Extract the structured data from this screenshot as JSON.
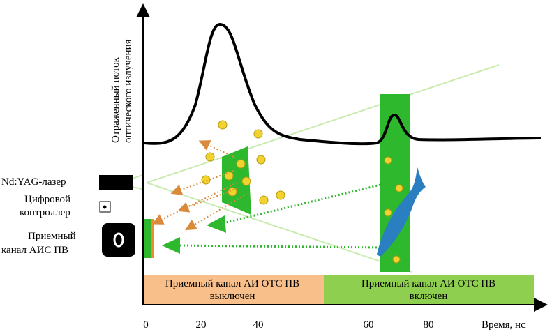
{
  "y_axis_label": [
    "Отраженный поток",
    "оптического излучения"
  ],
  "x_axis": {
    "ticks": [
      0,
      20,
      40,
      60,
      80
    ],
    "label": "Время, нс"
  },
  "devices": {
    "laser": "Nd:YAG-лазер",
    "controller": [
      "Цифровой",
      "контроллер"
    ],
    "receiver": [
      "Приемный",
      "канал АИС ПВ"
    ]
  },
  "states": {
    "off": [
      "Приемный канал АИ ОТС ПВ",
      "выключен"
    ],
    "on": [
      "Приемный канал АИ ОТС ПВ",
      "включен"
    ]
  }
}
